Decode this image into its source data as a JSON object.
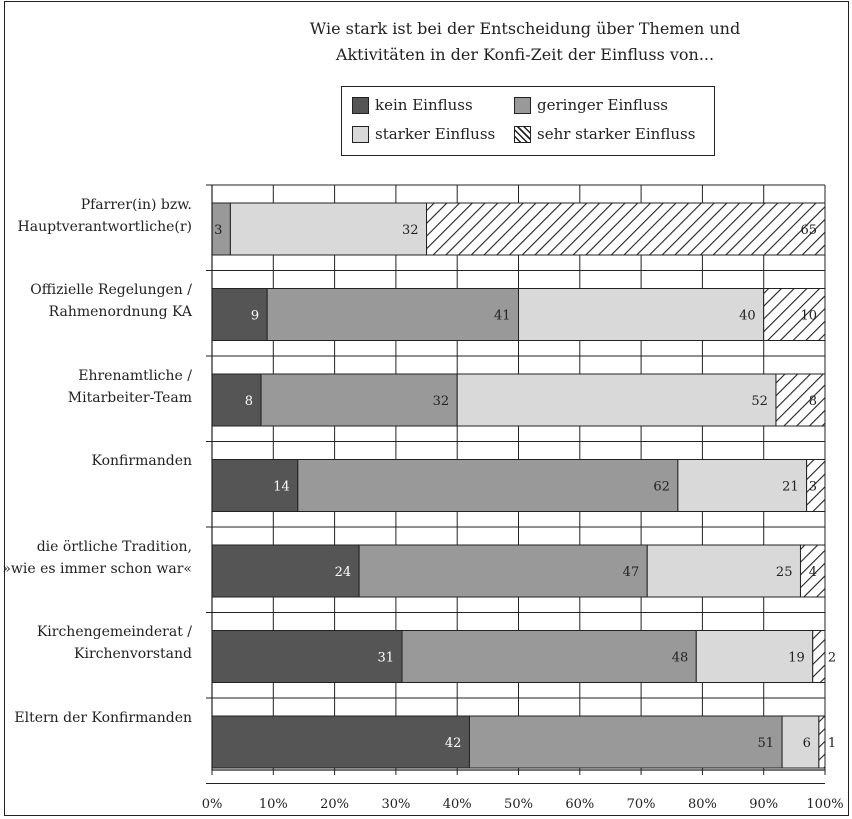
{
  "chart_data": {
    "type": "bar",
    "orientation": "horizontal",
    "stacked": true,
    "title_lines": [
      "Wie stark ist bei der Entscheidung über Themen und",
      "Aktivitäten in der Konfi-Zeit der Einfluss von..."
    ],
    "categories": [
      [
        "Pfarrer(in) bzw.",
        "Hauptverantwortliche(r)"
      ],
      [
        "Offizielle Regelungen /",
        "Rahmenordnung KA"
      ],
      [
        "Ehrenamtliche /",
        "Mitarbeiter-Team"
      ],
      [
        "Konfirmanden"
      ],
      [
        "die örtliche Tradition,",
        "»wie es immer schon war«"
      ],
      [
        "Kirchengemeinderat /",
        "Kirchenvorstand"
      ],
      [
        "Eltern der Konfirmanden"
      ]
    ],
    "series": [
      {
        "name": "kein Einfluss",
        "color": "#555555",
        "pattern": "solid",
        "values": [
          0,
          9,
          8,
          14,
          24,
          31,
          42
        ],
        "labels": [
          "",
          "9",
          "8",
          "14",
          "24",
          "31",
          "42"
        ]
      },
      {
        "name": "geringer Einfluss",
        "color": "#999999",
        "pattern": "solid",
        "values": [
          3,
          41,
          32,
          62,
          47,
          48,
          51
        ],
        "labels": [
          "3",
          "41",
          "32",
          "62",
          "47",
          "48",
          "51"
        ]
      },
      {
        "name": "starker Einfluss",
        "color": "#d9d9d9",
        "pattern": "solid",
        "values": [
          32,
          40,
          52,
          21,
          25,
          19,
          6
        ],
        "labels": [
          "32",
          "40",
          "52",
          "21",
          "25",
          "19",
          "6"
        ]
      },
      {
        "name": "sehr starker Einfluss",
        "color": "#ffffff",
        "pattern": "hatch",
        "values": [
          65,
          10,
          8,
          3,
          4,
          2,
          1
        ],
        "labels": [
          "65",
          "10",
          "8",
          "3",
          "4",
          "2",
          "1"
        ]
      }
    ],
    "x_ticks": [
      "0%",
      "10%",
      "20%",
      "30%",
      "40%",
      "50%",
      "60%",
      "70%",
      "80%",
      "90%",
      "100%"
    ],
    "xlim": [
      0,
      100
    ],
    "grid": true,
    "legend_position": "top"
  }
}
